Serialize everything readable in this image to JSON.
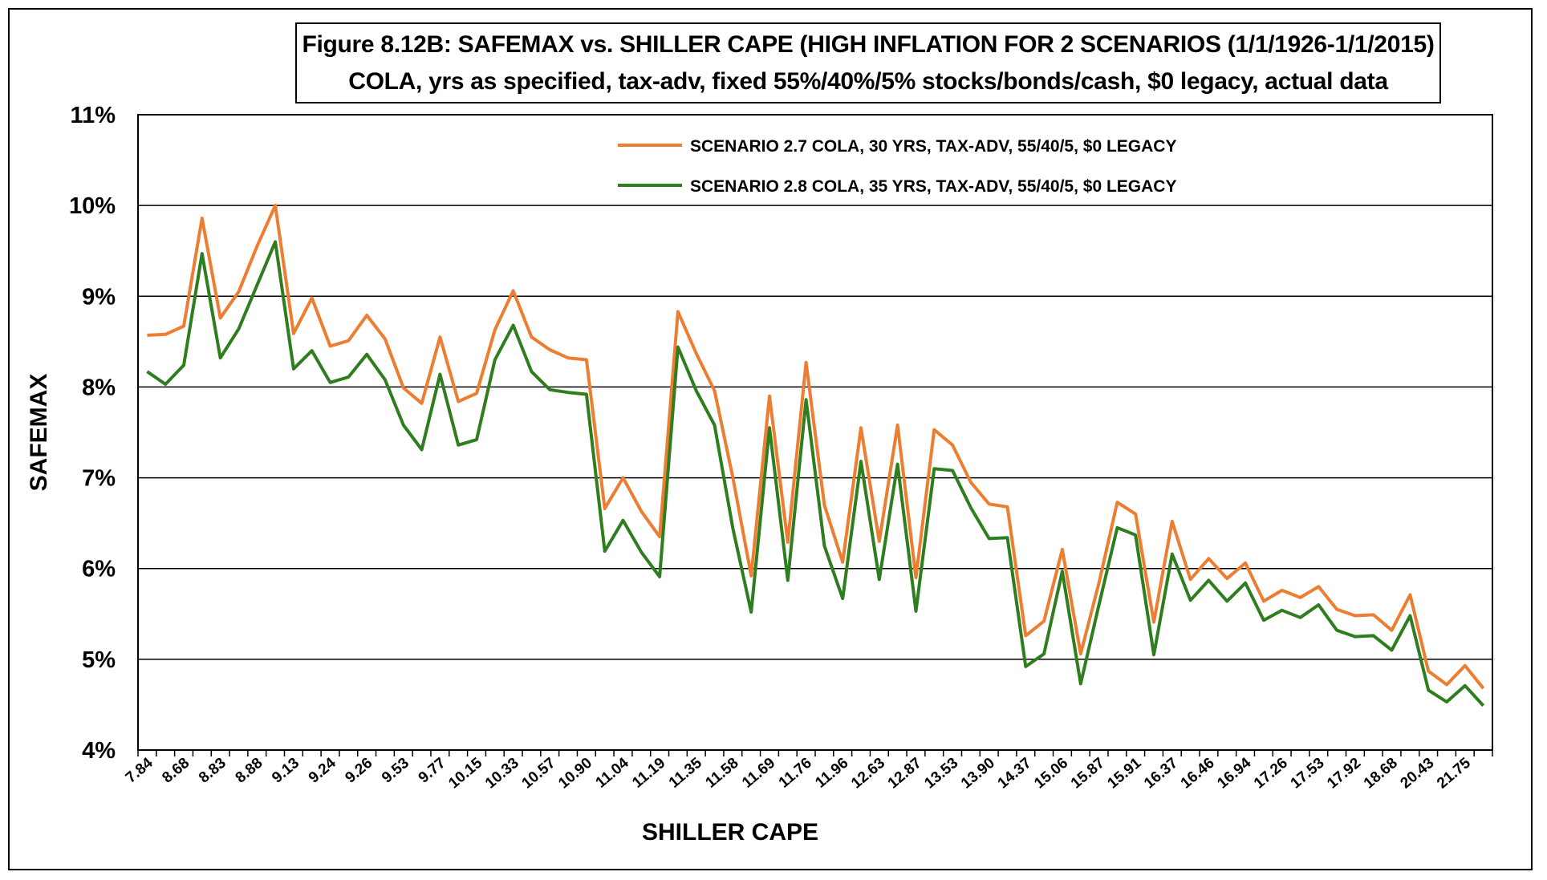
{
  "chart_data": {
    "type": "line",
    "title_line1": "Figure 8.12B: SAFEMAX vs. SHILLER CAPE (HIGH INFLATION FOR 2 SCENARIOS (1/1/1926-1/1/2015)",
    "title_line2": "COLA, yrs as specified, tax-adv, fixed 55%/40%/5% stocks/bonds/cash, $0 legacy, actual data",
    "xlabel": "SHILLER CAPE",
    "ylabel": "SAFEMAX",
    "ylim": [
      4,
      11
    ],
    "y_ticks": [
      "4%",
      "5%",
      "6%",
      "7%",
      "8%",
      "9%",
      "10%",
      "11%"
    ],
    "y_gridlines": [
      5,
      6,
      7,
      8,
      9,
      10
    ],
    "x_tick_labels": [
      "7.84",
      "8.68",
      "8.83",
      "8.88",
      "9.13",
      "9.24",
      "9.26",
      "9.53",
      "9.77",
      "10.15",
      "10.33",
      "10.57",
      "10.90",
      "11.04",
      "11.19",
      "11.35",
      "11.58",
      "11.69",
      "11.76",
      "11.96",
      "12.63",
      "12.87",
      "13.53",
      "13.90",
      "14.37",
      "15.06",
      "15.87",
      "15.91",
      "16.37",
      "16.46",
      "16.94",
      "17.26",
      "17.53",
      "17.92",
      "18.68",
      "20.43",
      "21.75"
    ],
    "legend_position": "top-center",
    "series": [
      {
        "name": "SCENARIO 2.7 COLA, 30 YRS, TAX-ADV, 55/40/5, $0 LEGACY",
        "color": "#ED7D31",
        "values": [
          8.57,
          8.58,
          8.67,
          9.86,
          8.76,
          9.05,
          9.55,
          10.0,
          8.59,
          8.98,
          8.45,
          8.51,
          8.79,
          8.53,
          7.99,
          7.82,
          8.55,
          7.84,
          7.93,
          8.63,
          9.06,
          8.55,
          8.41,
          8.32,
          8.3,
          6.66,
          7.0,
          6.63,
          6.35,
          8.83,
          8.37,
          7.96,
          7.0,
          5.92,
          7.9,
          6.29,
          8.27,
          6.7,
          6.07,
          7.55,
          6.3,
          7.58,
          5.9,
          7.53,
          7.36,
          6.95,
          6.71,
          6.68,
          5.26,
          5.42,
          6.21,
          5.06,
          5.84,
          6.73,
          6.6,
          5.41,
          6.52,
          5.88,
          6.11,
          5.89,
          6.06,
          5.64,
          5.76,
          5.68,
          5.8,
          5.55,
          5.48,
          5.49,
          5.32,
          5.71,
          4.87,
          4.72,
          4.93,
          4.68
        ]
      },
      {
        "name": "SCENARIO 2.8 COLA, 35 YRS, TAX-ADV, 55/40/5, $0 LEGACY",
        "color": "#2E7D1E",
        "values": [
          8.17,
          8.03,
          8.24,
          9.47,
          8.32,
          8.64,
          9.12,
          9.6,
          8.2,
          8.4,
          8.05,
          8.11,
          8.36,
          8.08,
          7.58,
          7.31,
          8.14,
          7.36,
          7.42,
          8.3,
          8.68,
          8.17,
          7.97,
          7.94,
          7.92,
          6.19,
          6.53,
          6.18,
          5.91,
          8.44,
          7.96,
          7.58,
          6.44,
          5.52,
          7.55,
          5.87,
          7.86,
          6.25,
          5.67,
          7.18,
          5.88,
          7.15,
          5.53,
          7.1,
          7.08,
          6.67,
          6.33,
          6.34,
          4.92,
          5.06,
          5.97,
          4.73,
          5.6,
          6.45,
          6.37,
          5.05,
          6.16,
          5.65,
          5.87,
          5.64,
          5.84,
          5.43,
          5.54,
          5.46,
          5.6,
          5.32,
          5.25,
          5.26,
          5.1,
          5.48,
          4.66,
          4.53,
          4.71,
          4.49
        ]
      }
    ]
  }
}
